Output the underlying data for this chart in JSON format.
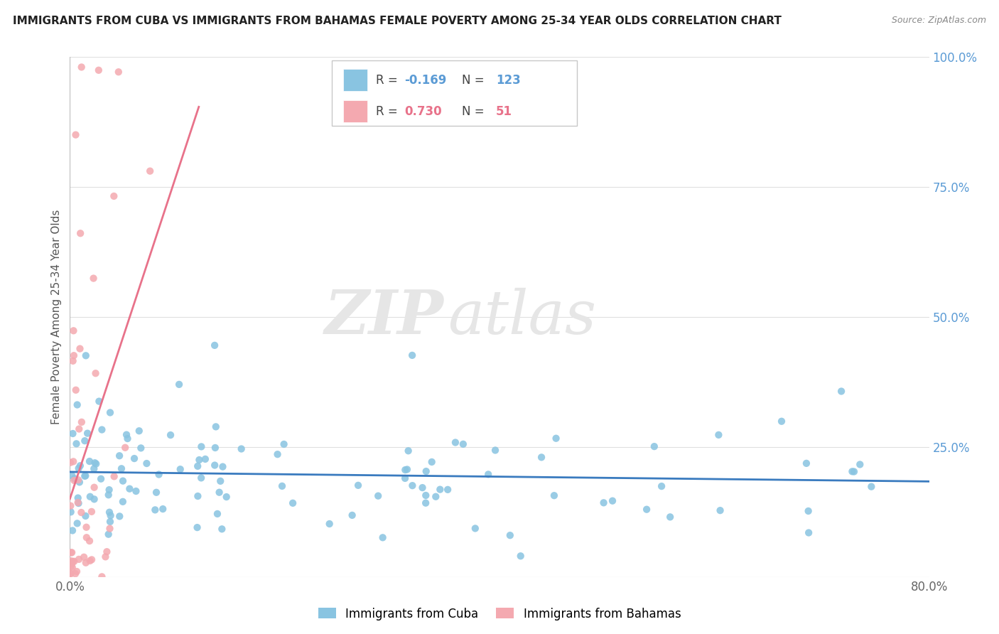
{
  "title": "IMMIGRANTS FROM CUBA VS IMMIGRANTS FROM BAHAMAS FEMALE POVERTY AMONG 25-34 YEAR OLDS CORRELATION CHART",
  "source": "Source: ZipAtlas.com",
  "ylabel": "Female Poverty Among 25-34 Year Olds",
  "xlim": [
    0.0,
    0.8
  ],
  "ylim": [
    0.0,
    1.0
  ],
  "yticks_right": [
    0.0,
    0.25,
    0.5,
    0.75,
    1.0
  ],
  "yticklabels_right": [
    "",
    "25.0%",
    "50.0%",
    "75.0%",
    "100.0%"
  ],
  "cuba_color": "#89c4e1",
  "bahamas_color": "#f4a9b0",
  "cuba_line_color": "#3a7bbf",
  "bahamas_line_color": "#e8728a",
  "cuba_R": -0.169,
  "cuba_N": 123,
  "bahamas_R": 0.73,
  "bahamas_N": 51,
  "watermark_zip": "ZIP",
  "watermark_atlas": "atlas",
  "background_color": "#ffffff",
  "legend_label_cuba": "Immigrants from Cuba",
  "legend_label_bahamas": "Immigrants from Bahamas"
}
